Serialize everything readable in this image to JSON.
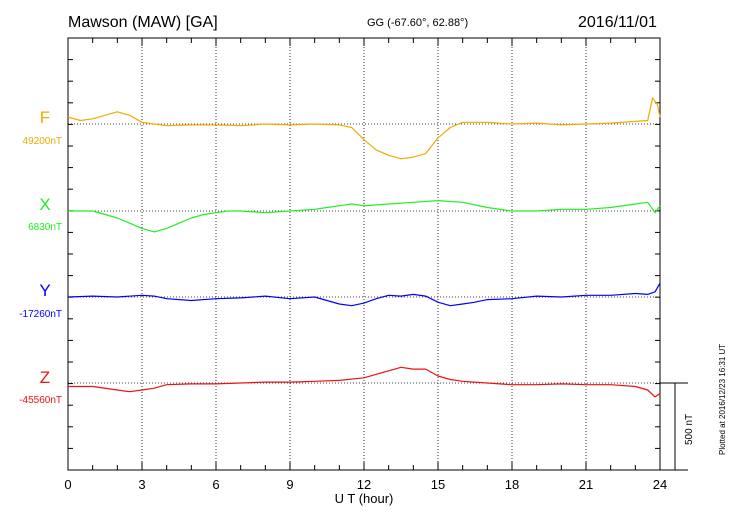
{
  "header": {
    "station": "Mawson (MAW)  [GA]",
    "coords": "GG (-67.60°,  62.88°)",
    "date": "2016/11/01"
  },
  "credit": "Plotted at 2016/12/23 16:31  UT",
  "scale_bar": {
    "label": "500 nT",
    "value_nT": 500
  },
  "chart_data": {
    "type": "line",
    "title": "Mawson (MAW)  [GA]",
    "xlabel": "U T (hour)",
    "xlim": [
      0,
      24
    ],
    "xticks": [
      "0",
      "3",
      "6",
      "9",
      "12",
      "15",
      "18",
      "21",
      "24"
    ],
    "grid": true,
    "series": [
      {
        "name": "F",
        "baseline_label": "49200nT",
        "baseline_nT": 49200,
        "color": "#f2a900",
        "x": [
          0,
          0.5,
          1,
          1.5,
          2,
          2.5,
          3,
          3.5,
          4,
          5,
          6,
          7,
          8,
          9,
          10,
          11,
          11.5,
          12,
          12.5,
          13,
          13.5,
          14,
          14.5,
          15,
          15.5,
          16,
          17,
          18,
          19,
          20,
          21,
          22,
          23,
          23.5,
          23.7,
          23.9,
          24
        ],
        "y": [
          49240,
          49220,
          49230,
          49250,
          49270,
          49250,
          49210,
          49200,
          49190,
          49195,
          49195,
          49190,
          49200,
          49195,
          49200,
          49195,
          49180,
          49110,
          49050,
          49020,
          49000,
          49010,
          49030,
          49120,
          49180,
          49210,
          49210,
          49200,
          49205,
          49195,
          49200,
          49205,
          49215,
          49220,
          49350,
          49310,
          49240
        ]
      },
      {
        "name": "X",
        "baseline_label": "6830nT",
        "baseline_nT": 6830,
        "color": "#22ee22",
        "x": [
          0,
          1,
          1.5,
          2,
          2.5,
          3,
          3.5,
          4,
          4.5,
          5,
          5.5,
          6,
          6.5,
          7,
          8,
          9,
          10,
          10.5,
          11,
          11.5,
          12,
          13,
          14,
          15,
          16,
          17,
          18,
          19,
          20,
          21,
          22,
          23,
          23.5,
          23.8,
          24
        ],
        "y": [
          6830,
          6830,
          6810,
          6790,
          6760,
          6730,
          6710,
          6730,
          6760,
          6790,
          6810,
          6820,
          6830,
          6830,
          6820,
          6830,
          6840,
          6850,
          6860,
          6870,
          6860,
          6870,
          6880,
          6890,
          6880,
          6850,
          6830,
          6830,
          6840,
          6840,
          6850,
          6870,
          6880,
          6820,
          6860
        ]
      },
      {
        "name": "Y",
        "baseline_label": "-17260nT",
        "baseline_nT": -17260,
        "color": "#0000ff",
        "x": [
          0,
          1,
          2,
          3,
          3.5,
          4,
          5,
          6,
          7,
          8,
          9,
          10,
          10.5,
          11,
          11.5,
          12,
          12.5,
          13,
          13.5,
          14,
          14.5,
          15,
          15.5,
          16,
          16.5,
          17,
          18,
          19,
          20,
          21,
          22,
          23,
          23.5,
          23.8,
          24
        ],
        "y": [
          -17260,
          -17255,
          -17260,
          -17250,
          -17255,
          -17270,
          -17280,
          -17270,
          -17265,
          -17255,
          -17270,
          -17260,
          -17280,
          -17300,
          -17310,
          -17295,
          -17270,
          -17250,
          -17255,
          -17245,
          -17255,
          -17290,
          -17310,
          -17300,
          -17290,
          -17275,
          -17270,
          -17255,
          -17260,
          -17250,
          -17250,
          -17240,
          -17245,
          -17230,
          -17180
        ]
      },
      {
        "name": "Z",
        "baseline_label": "-45560nT",
        "baseline_nT": -45560,
        "color": "#ee1111",
        "x": [
          0,
          1,
          2,
          2.5,
          3,
          3.5,
          4,
          5,
          6,
          7,
          8,
          9,
          10,
          11,
          12,
          12.5,
          13,
          13.5,
          14,
          14.5,
          15,
          15.5,
          16,
          17,
          18,
          19,
          20,
          21,
          22,
          23,
          23.5,
          23.8,
          24
        ],
        "y": [
          -45580,
          -45580,
          -45600,
          -45610,
          -45600,
          -45590,
          -45570,
          -45565,
          -45565,
          -45560,
          -45555,
          -45555,
          -45550,
          -45545,
          -45530,
          -45510,
          -45490,
          -45470,
          -45480,
          -45480,
          -45520,
          -45540,
          -45550,
          -45560,
          -45570,
          -45570,
          -45565,
          -45570,
          -45570,
          -45580,
          -45600,
          -45640,
          -45620
        ]
      }
    ]
  }
}
